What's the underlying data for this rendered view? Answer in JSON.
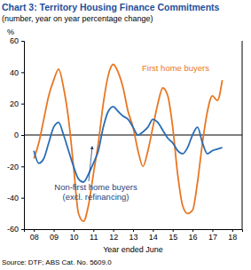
{
  "chart_data": {
    "type": "line",
    "title": "Chart 3: Territory Housing Finance Commitments",
    "subtitle": "(number, year on year percentage change)",
    "y_label": "%",
    "x_label": "Year ended June",
    "source": "Source: DTF; ABS Cat. No. 5609.0",
    "x": [
      2008.0,
      2008.25,
      2008.5,
      2008.75,
      2009.0,
      2009.25,
      2009.5,
      2009.75,
      2010.0,
      2010.25,
      2010.5,
      2010.75,
      2011.0,
      2011.25,
      2011.5,
      2011.75,
      2012.0,
      2012.25,
      2012.5,
      2012.75,
      2013.0,
      2013.25,
      2013.5,
      2013.75,
      2014.0,
      2014.25,
      2014.5,
      2014.75,
      2015.0,
      2015.25,
      2015.5,
      2015.75,
      2016.0,
      2016.25,
      2016.5,
      2016.75,
      2017.0,
      2017.25,
      2017.5
    ],
    "series": [
      {
        "name": "First home buyers",
        "color": "#e87722",
        "values": [
          -15,
          -5,
          10,
          25,
          35,
          42,
          30,
          10,
          -20,
          -50,
          -55,
          -45,
          -25,
          -5,
          20,
          38,
          45,
          40,
          30,
          15,
          5,
          -10,
          -20,
          -10,
          5,
          20,
          30,
          25,
          5,
          -25,
          -45,
          -50,
          -48,
          -30,
          -5,
          15,
          25,
          22,
          35
        ]
      },
      {
        "name": "Non-first home buyers (excl. refinancing)",
        "color": "#2a6db5",
        "values": [
          -10,
          -18,
          -15,
          -5,
          5,
          8,
          0,
          -10,
          -20,
          -28,
          -30,
          -25,
          -18,
          -10,
          5,
          15,
          18,
          15,
          12,
          10,
          5,
          0,
          2,
          5,
          10,
          8,
          3,
          -2,
          -5,
          -10,
          -12,
          -8,
          0,
          5,
          -5,
          -12,
          -10,
          -9,
          -8
        ]
      }
    ],
    "xlim": [
      2007.5,
      2018.5
    ],
    "xticks": [
      {
        "value": 2008,
        "label": "08"
      },
      {
        "value": 2009,
        "label": "09"
      },
      {
        "value": 2010,
        "label": "10"
      },
      {
        "value": 2011,
        "label": "11"
      },
      {
        "value": 2012,
        "label": "12"
      },
      {
        "value": 2013,
        "label": "13"
      },
      {
        "value": 2014,
        "label": "14"
      },
      {
        "value": 2015,
        "label": "15"
      },
      {
        "value": 2016,
        "label": "16"
      },
      {
        "value": 2017,
        "label": "17"
      },
      {
        "value": 2018,
        "label": "18"
      }
    ],
    "ylim": [
      -60,
      60
    ],
    "yticks": [
      -60,
      -40,
      -20,
      0,
      20,
      40,
      60
    ],
    "grid": false
  }
}
